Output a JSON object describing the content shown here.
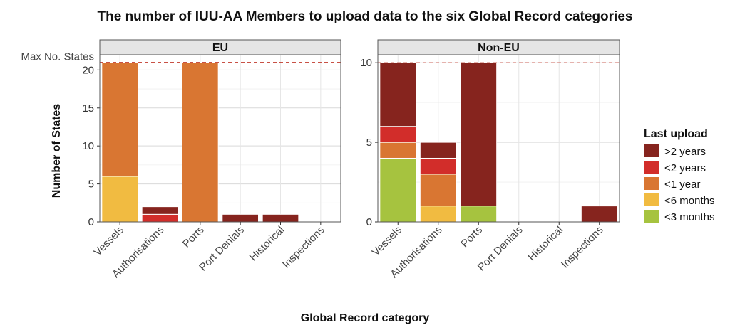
{
  "chart_data": {
    "type": "bar",
    "stacked": true,
    "title": "The number of IUU-AA Members to upload data to the six Global Record categories",
    "xlabel": "Global Record category",
    "ylabel": "Number of States",
    "reference_line": {
      "label": "Max No. States",
      "style": "dashed",
      "color": "#c0392b"
    },
    "legend": {
      "title": "Last upload",
      "position": "right",
      "entries": [
        {
          "name": ">2 years",
          "color": "#86241e"
        },
        {
          "name": "<2 years",
          "color": "#d22d2a"
        },
        {
          "name": "<1 year",
          "color": "#d97632"
        },
        {
          "name": "<6 months",
          "color": "#f1bb41"
        },
        {
          "name": "<3 months",
          "color": "#a6c33f"
        }
      ]
    },
    "categories": [
      "Vessels",
      "Authorisations",
      "Ports",
      "Port Denials",
      "Historical",
      "Inspections"
    ],
    "panels": [
      {
        "name": "EU",
        "ylim": [
          0,
          22
        ],
        "yticks": [
          0,
          5,
          10,
          15,
          20
        ],
        "max_states": 21,
        "series": [
          {
            "name": "<3 months",
            "values": [
              0,
              0,
              0,
              0,
              0,
              0
            ]
          },
          {
            "name": "<6 months",
            "values": [
              6,
              0,
              0,
              0,
              0,
              0
            ]
          },
          {
            "name": "<1 year",
            "values": [
              15,
              0,
              21,
              0,
              0,
              0
            ]
          },
          {
            "name": "<2 years",
            "values": [
              0,
              1,
              0,
              0,
              0,
              0
            ]
          },
          {
            "name": ">2 years",
            "values": [
              0,
              1,
              0,
              1,
              1,
              0
            ]
          }
        ]
      },
      {
        "name": "Non-EU",
        "ylim": [
          0,
          10.5
        ],
        "yticks": [
          0,
          5,
          10
        ],
        "max_states": 10,
        "series": [
          {
            "name": "<3 months",
            "values": [
              4,
              0,
              1,
              0,
              0,
              0
            ]
          },
          {
            "name": "<6 months",
            "values": [
              0,
              1,
              0,
              0,
              0,
              0
            ]
          },
          {
            "name": "<1 year",
            "values": [
              1,
              2,
              0,
              0,
              0,
              0
            ]
          },
          {
            "name": "<2 years",
            "values": [
              1,
              1,
              0,
              0,
              0,
              0
            ]
          },
          {
            "name": ">2 years",
            "values": [
              4,
              1,
              9,
              0,
              0,
              1
            ]
          }
        ]
      }
    ]
  }
}
